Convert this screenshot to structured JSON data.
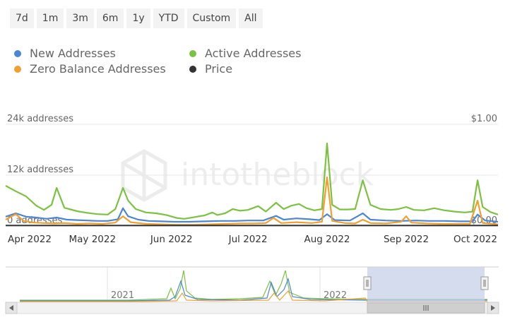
{
  "range_buttons": [
    "7d",
    "1m",
    "3m",
    "6m",
    "1y",
    "YTD",
    "Custom",
    "All"
  ],
  "legend": [
    {
      "label": "New Addresses",
      "color": "#4a86d4"
    },
    {
      "label": "Active Addresses",
      "color": "#7cc242"
    },
    {
      "label": "Zero Balance Addresses",
      "color": "#f0a030"
    },
    {
      "label": "Price",
      "color": "#333333"
    }
  ],
  "watermark": "intotheblock",
  "chart_data": {
    "type": "line",
    "title": "",
    "x_range": [
      "2022-03-28",
      "2022-10-07"
    ],
    "x_tick_labels": [
      "Apr 2022",
      "May 2022",
      "Jun 2022",
      "Jul 2022",
      "Aug 2022",
      "Sep 2022",
      "Oct 2022"
    ],
    "x_tick_dates": [
      "2022-04-01",
      "2022-05-01",
      "2022-06-01",
      "2022-07-01",
      "2022-08-01",
      "2022-09-01",
      "2022-10-01"
    ],
    "y_left": {
      "ticks": [
        0,
        12000,
        24000
      ],
      "tick_labels": [
        "0 addresses",
        "12k addresses",
        "24k addresses"
      ],
      "range": [
        0,
        24000
      ]
    },
    "y_right": {
      "ticks": [
        0,
        1
      ],
      "tick_labels": [
        "$0.00",
        "$1.00"
      ],
      "range": [
        0,
        1
      ]
    },
    "grid": true,
    "series": [
      {
        "name": "Active Addresses",
        "axis": "left",
        "color": "#7cc242",
        "points": [
          [
            "2022-03-28",
            9500
          ],
          [
            "2022-04-01",
            8200
          ],
          [
            "2022-04-05",
            7000
          ],
          [
            "2022-04-09",
            4800
          ],
          [
            "2022-04-12",
            3800
          ],
          [
            "2022-04-15",
            5000
          ],
          [
            "2022-04-17",
            9000
          ],
          [
            "2022-04-20",
            4300
          ],
          [
            "2022-04-25",
            3500
          ],
          [
            "2022-04-29",
            3100
          ],
          [
            "2022-05-03",
            2800
          ],
          [
            "2022-05-07",
            2700
          ],
          [
            "2022-05-10",
            4000
          ],
          [
            "2022-05-13",
            9000
          ],
          [
            "2022-05-15",
            6000
          ],
          [
            "2022-05-18",
            4000
          ],
          [
            "2022-05-22",
            3200
          ],
          [
            "2022-05-26",
            3000
          ],
          [
            "2022-05-30",
            2600
          ],
          [
            "2022-06-03",
            1900
          ],
          [
            "2022-06-06",
            1700
          ],
          [
            "2022-06-10",
            2100
          ],
          [
            "2022-06-14",
            2500
          ],
          [
            "2022-06-17",
            3200
          ],
          [
            "2022-06-19",
            2600
          ],
          [
            "2022-06-22",
            3000
          ],
          [
            "2022-06-25",
            4000
          ],
          [
            "2022-06-28",
            3600
          ],
          [
            "2022-07-01",
            3800
          ],
          [
            "2022-07-05",
            4700
          ],
          [
            "2022-07-08",
            3400
          ],
          [
            "2022-07-12",
            5500
          ],
          [
            "2022-07-15",
            4000
          ],
          [
            "2022-07-18",
            4800
          ],
          [
            "2022-07-21",
            5200
          ],
          [
            "2022-07-24",
            4200
          ],
          [
            "2022-07-27",
            3700
          ],
          [
            "2022-07-30",
            4000
          ],
          [
            "2022-08-01",
            19500
          ],
          [
            "2022-08-03",
            5000
          ],
          [
            "2022-08-06",
            3900
          ],
          [
            "2022-08-09",
            3900
          ],
          [
            "2022-08-12",
            4000
          ],
          [
            "2022-08-15",
            10800
          ],
          [
            "2022-08-18",
            5000
          ],
          [
            "2022-08-22",
            4000
          ],
          [
            "2022-08-26",
            3800
          ],
          [
            "2022-08-29",
            4000
          ],
          [
            "2022-09-01",
            4500
          ],
          [
            "2022-09-04",
            3800
          ],
          [
            "2022-09-08",
            3700
          ],
          [
            "2022-09-12",
            4200
          ],
          [
            "2022-09-16",
            3700
          ],
          [
            "2022-09-20",
            3400
          ],
          [
            "2022-09-24",
            3200
          ],
          [
            "2022-09-27",
            3400
          ],
          [
            "2022-09-29",
            10800
          ],
          [
            "2022-10-01",
            4500
          ],
          [
            "2022-10-04",
            3300
          ],
          [
            "2022-10-07",
            2700
          ]
        ]
      },
      {
        "name": "New Addresses",
        "axis": "left",
        "color": "#4a86d4",
        "points": [
          [
            "2022-03-28",
            2200
          ],
          [
            "2022-04-01",
            3000
          ],
          [
            "2022-04-05",
            2200
          ],
          [
            "2022-04-09",
            2000
          ],
          [
            "2022-04-13",
            1700
          ],
          [
            "2022-04-17",
            2000
          ],
          [
            "2022-04-21",
            1500
          ],
          [
            "2022-04-25",
            1400
          ],
          [
            "2022-04-29",
            1300
          ],
          [
            "2022-05-03",
            1200
          ],
          [
            "2022-05-07",
            1200
          ],
          [
            "2022-05-11",
            1600
          ],
          [
            "2022-05-13",
            4200
          ],
          [
            "2022-05-15",
            2300
          ],
          [
            "2022-05-19",
            1500
          ],
          [
            "2022-05-23",
            1200
          ],
          [
            "2022-05-28",
            1100
          ],
          [
            "2022-06-02",
            1000
          ],
          [
            "2022-06-08",
            1000
          ],
          [
            "2022-06-14",
            1100
          ],
          [
            "2022-06-20",
            1200
          ],
          [
            "2022-06-26",
            1200
          ],
          [
            "2022-07-01",
            1300
          ],
          [
            "2022-07-07",
            1300
          ],
          [
            "2022-07-12",
            2400
          ],
          [
            "2022-07-15",
            1500
          ],
          [
            "2022-07-20",
            1800
          ],
          [
            "2022-07-25",
            1600
          ],
          [
            "2022-07-29",
            1400
          ],
          [
            "2022-08-01",
            2800
          ],
          [
            "2022-08-04",
            1400
          ],
          [
            "2022-08-10",
            1300
          ],
          [
            "2022-08-15",
            3000
          ],
          [
            "2022-08-18",
            1500
          ],
          [
            "2022-08-24",
            1300
          ],
          [
            "2022-08-30",
            1200
          ],
          [
            "2022-09-05",
            1300
          ],
          [
            "2022-09-10",
            1200
          ],
          [
            "2022-09-16",
            1200
          ],
          [
            "2022-09-22",
            1100
          ],
          [
            "2022-09-27",
            1100
          ],
          [
            "2022-09-29",
            2700
          ],
          [
            "2022-10-02",
            1300
          ],
          [
            "2022-10-07",
            1000
          ]
        ]
      },
      {
        "name": "Zero Balance Addresses",
        "axis": "left",
        "color": "#f0a030",
        "points": [
          [
            "2022-03-28",
            1500
          ],
          [
            "2022-04-01",
            2800
          ],
          [
            "2022-04-04",
            1200
          ],
          [
            "2022-04-08",
            800
          ],
          [
            "2022-04-12",
            700
          ],
          [
            "2022-04-16",
            600
          ],
          [
            "2022-04-20",
            700
          ],
          [
            "2022-04-25",
            500
          ],
          [
            "2022-04-30",
            600
          ],
          [
            "2022-05-05",
            500
          ],
          [
            "2022-05-10",
            800
          ],
          [
            "2022-05-13",
            2300
          ],
          [
            "2022-05-16",
            900
          ],
          [
            "2022-05-22",
            500
          ],
          [
            "2022-05-28",
            400
          ],
          [
            "2022-06-03",
            300
          ],
          [
            "2022-06-10",
            300
          ],
          [
            "2022-06-16",
            400
          ],
          [
            "2022-06-22",
            500
          ],
          [
            "2022-06-28",
            600
          ],
          [
            "2022-07-03",
            600
          ],
          [
            "2022-07-08",
            700
          ],
          [
            "2022-07-11",
            1900
          ],
          [
            "2022-07-14",
            700
          ],
          [
            "2022-07-20",
            900
          ],
          [
            "2022-07-26",
            700
          ],
          [
            "2022-07-30",
            1000
          ],
          [
            "2022-08-01",
            11500
          ],
          [
            "2022-08-03",
            1200
          ],
          [
            "2022-08-08",
            700
          ],
          [
            "2022-08-12",
            600
          ],
          [
            "2022-08-15",
            1500
          ],
          [
            "2022-08-18",
            700
          ],
          [
            "2022-08-24",
            600
          ],
          [
            "2022-08-30",
            1000
          ],
          [
            "2022-09-01",
            2300
          ],
          [
            "2022-09-03",
            800
          ],
          [
            "2022-09-09",
            600
          ],
          [
            "2022-09-15",
            500
          ],
          [
            "2022-09-21",
            500
          ],
          [
            "2022-09-26",
            500
          ],
          [
            "2022-09-29",
            6000
          ],
          [
            "2022-10-01",
            700
          ],
          [
            "2022-10-05",
            500
          ],
          [
            "2022-10-07",
            400
          ]
        ]
      },
      {
        "name": "Price",
        "axis": "right",
        "color": "#333333",
        "points": [
          [
            "2022-03-28",
            0.005
          ],
          [
            "2022-10-07",
            0.005
          ]
        ]
      }
    ]
  },
  "navigator": {
    "year_labels": [
      "2021",
      "2022"
    ],
    "selected_range": [
      "2022-03-28",
      "2022-10-07"
    ]
  }
}
